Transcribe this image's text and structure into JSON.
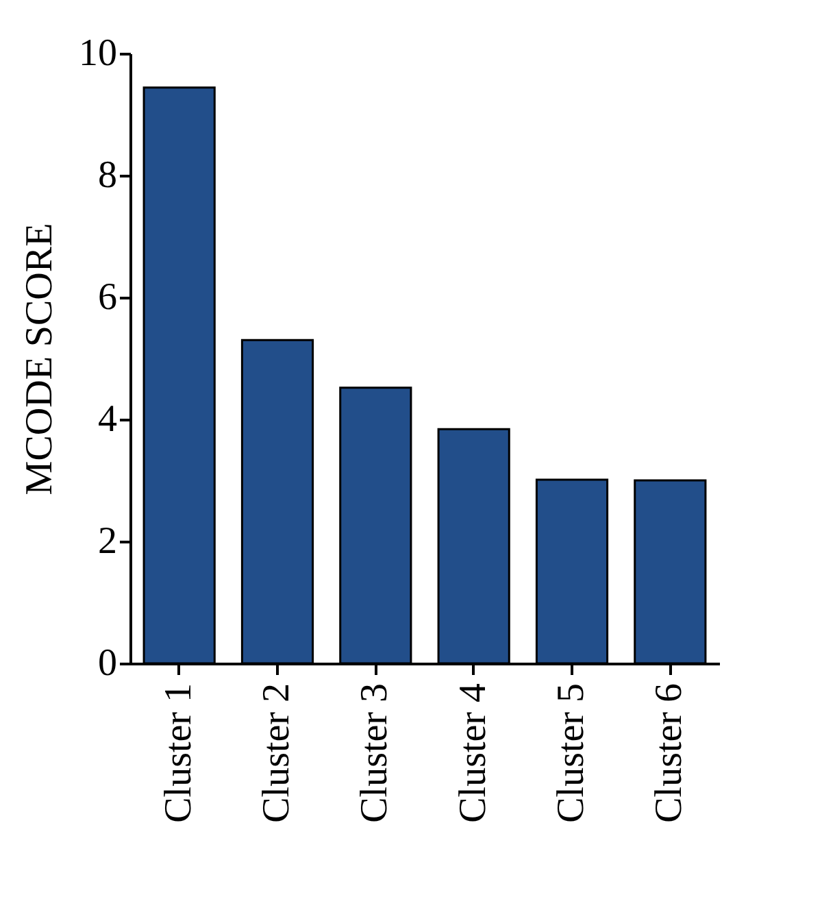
{
  "chart_data": {
    "type": "bar",
    "ylabel": "MCODE SCORE",
    "categories": [
      "Cluster 1",
      "Cluster 2",
      "Cluster 3",
      "Cluster 4",
      "Cluster 5",
      "Cluster 6"
    ],
    "values": [
      9.44,
      5.3,
      4.52,
      3.84,
      3.01,
      3.0
    ],
    "color": "#224e8a",
    "ylim": [
      0,
      10
    ],
    "yticks": [
      0,
      2,
      4,
      6,
      8,
      10
    ],
    "grid": false
  }
}
